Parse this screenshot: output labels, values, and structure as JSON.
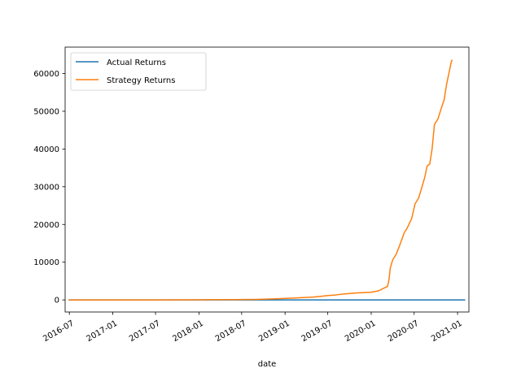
{
  "chart_data": {
    "type": "line",
    "title": "",
    "xlabel": "date",
    "ylabel": "",
    "xlim": [
      "2016-06-13",
      "2021-02-18"
    ],
    "ylim": [
      -3200,
      67000
    ],
    "grid": false,
    "legend_position": "top-left",
    "x_ticks": [
      "2016-07-01",
      "2017-01-01",
      "2017-07-01",
      "2018-01-01",
      "2018-07-01",
      "2019-01-01",
      "2019-07-01",
      "2020-01-01",
      "2020-07-01",
      "2021-01-01"
    ],
    "x_tick_labels": [
      "2016-07",
      "2017-01",
      "2017-07",
      "2018-01",
      "2018-07",
      "2019-01",
      "2019-07",
      "2020-01",
      "2020-07",
      "2021-01"
    ],
    "y_ticks": [
      0,
      10000,
      20000,
      30000,
      40000,
      50000,
      60000
    ],
    "y_tick_labels": [
      "0",
      "10000",
      "20000",
      "30000",
      "40000",
      "50000",
      "60000"
    ],
    "series": [
      {
        "name": "Actual Returns",
        "color": "#1f77b4",
        "points": [
          [
            "2016-06-30",
            0
          ],
          [
            "2021-01-31",
            0
          ]
        ]
      },
      {
        "name": "Strategy Returns",
        "color": "#ff7f0e",
        "points": [
          [
            "2016-06-30",
            0
          ],
          [
            "2017-01-01",
            5
          ],
          [
            "2017-07-01",
            15
          ],
          [
            "2018-01-01",
            40
          ],
          [
            "2018-06-01",
            80
          ],
          [
            "2018-09-01",
            150
          ],
          [
            "2018-11-01",
            250
          ],
          [
            "2019-01-01",
            420
          ],
          [
            "2019-03-01",
            560
          ],
          [
            "2019-05-01",
            750
          ],
          [
            "2019-06-01",
            950
          ],
          [
            "2019-07-01",
            1150
          ],
          [
            "2019-08-01",
            1300
          ],
          [
            "2019-09-01",
            1550
          ],
          [
            "2019-10-01",
            1700
          ],
          [
            "2019-11-01",
            1850
          ],
          [
            "2019-12-01",
            1950
          ],
          [
            "2020-01-01",
            2050
          ],
          [
            "2020-02-01",
            2400
          ],
          [
            "2020-02-20",
            3000
          ],
          [
            "2020-03-01",
            3300
          ],
          [
            "2020-03-10",
            3600
          ],
          [
            "2020-03-16",
            5200
          ],
          [
            "2020-03-22",
            8500
          ],
          [
            "2020-04-01",
            10600
          ],
          [
            "2020-04-15",
            12000
          ],
          [
            "2020-05-01",
            14500
          ],
          [
            "2020-05-20",
            17800
          ],
          [
            "2020-06-01",
            19000
          ],
          [
            "2020-06-20",
            21500
          ],
          [
            "2020-07-05",
            25500
          ],
          [
            "2020-07-20",
            27000
          ],
          [
            "2020-08-01",
            29500
          ],
          [
            "2020-08-15",
            32500
          ],
          [
            "2020-08-25",
            35500
          ],
          [
            "2020-09-05",
            36000
          ],
          [
            "2020-09-15",
            40000
          ],
          [
            "2020-09-25",
            46500
          ],
          [
            "2020-10-10",
            48000
          ],
          [
            "2020-10-25",
            51000
          ],
          [
            "2020-11-05",
            53000
          ],
          [
            "2020-11-15",
            57000
          ],
          [
            "2020-11-25",
            60000
          ],
          [
            "2020-12-05",
            63000
          ],
          [
            "2020-12-08",
            63500
          ]
        ]
      }
    ]
  }
}
